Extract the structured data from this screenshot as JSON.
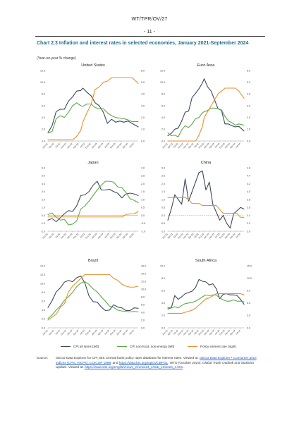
{
  "document": {
    "header": "WT/TPR/OV/27",
    "page_number": "- 11 -",
    "chart_title": "Chart 2.3 Inflation and interest rates in selected economies, January 2021-September 2024",
    "unit_label": "(Year-on-year % change)",
    "source_label": "Source:",
    "source_parts": [
      {
        "t": "OECD Data Explorer for CPI, BIS Central bank policy rates database for interest rates. Viewed at: ",
        "s": ""
      },
      {
        "t": "OECD Data Explorer • Consumer price indices (CPIs, HICPs), COICOP 1999",
        "s": "u"
      },
      {
        "t": "; and ",
        "s": ""
      },
      {
        "t": "https://data.bis.org/topics/CBPOL",
        "s": "u"
      },
      {
        "t": ". WTO (October 2024), ",
        "s": ""
      },
      {
        "t": "Global Trade Outlook and Statistics Update",
        "s": "i"
      },
      {
        "t": ". Viewed at: ",
        "s": ""
      },
      {
        "t": "https://www.wto.org/english/news_e/news24_e/stat_10oct24_e.htm",
        "s": "u"
      },
      {
        "t": ".",
        "s": ""
      }
    ]
  },
  "colors": {
    "cpi_all": "#3b4a5e",
    "cpi_core": "#5fa84a",
    "policy": "#e8912c",
    "axis": "#999999",
    "zero_line": "#9aa4c0"
  },
  "legend": [
    "CPI all items (left)",
    "CPI non-food, non-energy (left)",
    "Policy interest rate (right)"
  ],
  "x_ticks": [
    "Jan-21",
    "Apr-21",
    "Jul-21",
    "Oct-21",
    "Jan-22",
    "Apr-22",
    "Jul-22",
    "Oct-22",
    "Jan-23",
    "Apr-23",
    "Jul-23",
    "Oct-23",
    "Jan-24",
    "Apr-24",
    "Jul-24"
  ],
  "chart_data": [
    {
      "type": "line",
      "title": "United States",
      "left_ticks": [
        "0.0",
        "2.0",
        "4.0",
        "6.0",
        "8.0",
        "10.0",
        "12.0"
      ],
      "ylim_left": [
        0,
        12
      ],
      "right_ticks": [
        "0.0",
        "1.0",
        "2.0",
        "3.0",
        "4.0",
        "5.0",
        "6.0"
      ],
      "ylim_right": [
        0,
        6
      ],
      "x": [
        "2021-01",
        "2021-03",
        "2021-05",
        "2021-07",
        "2021-09",
        "2021-11",
        "2022-01",
        "2022-03",
        "2022-05",
        "2022-06",
        "2022-08",
        "2022-10",
        "2022-12",
        "2023-02",
        "2023-04",
        "2023-06",
        "2023-08",
        "2023-10",
        "2023-12",
        "2024-02",
        "2024-04",
        "2024-06",
        "2024-09"
      ],
      "series": [
        {
          "name": "CPI all items (left)",
          "axis": "left",
          "values": [
            1.4,
            2.6,
            5.0,
            5.4,
            5.4,
            6.8,
            7.5,
            8.5,
            8.6,
            9.0,
            8.3,
            7.7,
            6.5,
            6.0,
            4.9,
            3.0,
            3.7,
            3.2,
            3.4,
            3.2,
            3.4,
            3.0,
            2.4
          ]
        },
        {
          "name": "CPI non-food, non-energy (left)",
          "axis": "left",
          "values": [
            1.4,
            1.6,
            3.8,
            4.3,
            4.0,
            4.9,
            6.0,
            6.5,
            6.0,
            5.9,
            6.3,
            6.3,
            5.7,
            5.5,
            5.5,
            4.8,
            4.3,
            4.0,
            3.9,
            3.8,
            3.6,
            3.3,
            3.3
          ]
        },
        {
          "name": "Policy interest rate (right)",
          "axis": "right",
          "values": [
            0.1,
            0.1,
            0.1,
            0.1,
            0.1,
            0.1,
            0.1,
            0.4,
            0.9,
            1.6,
            2.4,
            3.1,
            4.4,
            4.6,
            5.0,
            5.1,
            5.4,
            5.4,
            5.4,
            5.4,
            5.4,
            5.4,
            4.9
          ]
        }
      ]
    },
    {
      "type": "line",
      "title": "Euro Area",
      "left_ticks": [
        "0.0",
        "2.0",
        "4.0",
        "6.0",
        "8.0",
        "10.0",
        "12.0"
      ],
      "ylim_left": [
        0,
        12
      ],
      "right_ticks": [
        "0.0",
        "1.0",
        "2.0",
        "3.0",
        "4.0",
        "5.0",
        "6.0"
      ],
      "ylim_right": [
        0,
        6
      ],
      "x": [
        "2021-01",
        "2021-03",
        "2021-05",
        "2021-07",
        "2021-09",
        "2021-11",
        "2022-01",
        "2022-03",
        "2022-05",
        "2022-07",
        "2022-09",
        "2022-10",
        "2022-12",
        "2023-02",
        "2023-04",
        "2023-06",
        "2023-08",
        "2023-10",
        "2023-12",
        "2024-02",
        "2024-04",
        "2024-06",
        "2024-09"
      ],
      "series": [
        {
          "name": "CPI all items (left)",
          "axis": "left",
          "values": [
            0.9,
            1.3,
            2.0,
            2.2,
            3.4,
            4.9,
            5.1,
            7.4,
            8.1,
            8.9,
            9.9,
            10.6,
            9.2,
            8.5,
            7.0,
            5.5,
            5.2,
            2.9,
            2.9,
            2.6,
            2.4,
            2.5,
            1.7
          ]
        },
        {
          "name": "CPI non-food, non-energy (left)",
          "axis": "left",
          "values": [
            1.4,
            0.9,
            1.0,
            0.7,
            1.9,
            2.6,
            2.3,
            2.9,
            3.8,
            4.0,
            4.8,
            5.0,
            5.2,
            5.6,
            5.6,
            5.5,
            5.3,
            4.2,
            3.4,
            3.1,
            2.7,
            2.9,
            2.7
          ]
        },
        {
          "name": "Policy interest rate (right)",
          "axis": "right",
          "values": [
            0.0,
            0.0,
            0.0,
            0.0,
            0.0,
            0.0,
            0.0,
            0.0,
            0.0,
            0.5,
            1.25,
            2.0,
            2.5,
            3.0,
            3.5,
            4.0,
            4.25,
            4.5,
            4.5,
            4.5,
            4.5,
            4.25,
            3.65
          ]
        }
      ]
    },
    {
      "type": "line",
      "title": "Japan",
      "left_ticks": [
        "-2.0",
        "-1.0",
        "0.0",
        "1.0",
        "2.0",
        "3.0",
        "4.0",
        "5.0",
        "6.0"
      ],
      "ylim_left": [
        -2,
        6
      ],
      "right_ticks": [
        "-1.0",
        "-0.5",
        "0.0",
        "0.5",
        "1.0",
        "1.5",
        "2.0",
        "2.5",
        "3.0"
      ],
      "ylim_right": [
        -1,
        3
      ],
      "x": [
        "2021-01",
        "2021-03",
        "2021-05",
        "2021-07",
        "2021-09",
        "2021-11",
        "2022-01",
        "2022-03",
        "2022-05",
        "2022-07",
        "2022-09",
        "2022-11",
        "2023-01",
        "2023-03",
        "2023-05",
        "2023-07",
        "2023-09",
        "2023-11",
        "2024-01",
        "2024-03",
        "2024-05",
        "2024-07",
        "2024-09"
      ],
      "series": [
        {
          "name": "CPI all items (left)",
          "axis": "left",
          "values": [
            -0.6,
            -0.4,
            -0.8,
            -0.3,
            0.2,
            0.6,
            0.5,
            1.2,
            2.5,
            2.6,
            3.0,
            3.8,
            4.3,
            3.2,
            3.2,
            3.3,
            3.0,
            2.8,
            2.2,
            2.7,
            2.8,
            2.7,
            2.5
          ]
        },
        {
          "name": "CPI non-food, non-energy (left)",
          "axis": "left",
          "values": [
            0.1,
            0.3,
            -0.2,
            -0.6,
            -0.5,
            -1.2,
            -1.1,
            -0.7,
            0.8,
            1.2,
            1.8,
            2.5,
            3.2,
            3.8,
            4.3,
            4.3,
            4.2,
            3.6,
            3.5,
            2.9,
            2.1,
            1.9,
            1.6
          ]
        },
        {
          "name": "Policy interest rate (right)",
          "axis": "right",
          "values": [
            -0.1,
            -0.1,
            -0.1,
            -0.1,
            -0.1,
            -0.1,
            -0.1,
            -0.1,
            -0.1,
            -0.1,
            -0.1,
            -0.1,
            -0.1,
            -0.1,
            -0.1,
            -0.1,
            -0.1,
            -0.1,
            -0.1,
            0.05,
            0.1,
            0.1,
            0.25
          ]
        }
      ]
    },
    {
      "type": "line",
      "title": "China",
      "left_ticks": [
        "-1.0",
        "-0.5",
        "0.0",
        "0.5",
        "1.0",
        "1.5",
        "2.0",
        "2.5",
        "3.0"
      ],
      "ylim_left": [
        -1,
        3
      ],
      "right_ticks": [
        "3.0",
        "3.2",
        "3.4",
        "3.6",
        "3.8",
        "4.0",
        "4.2",
        "4.4",
        "4.6"
      ],
      "ylim_right": [
        3.0,
        4.6
      ],
      "x": [
        "2021-01",
        "2021-03",
        "2021-05",
        "2021-07",
        "2021-09",
        "2021-11",
        "2022-01",
        "2022-03",
        "2022-05",
        "2022-07",
        "2022-09",
        "2022-11",
        "2023-01",
        "2023-03",
        "2023-05",
        "2023-07",
        "2023-09",
        "2023-11",
        "2024-01",
        "2024-03",
        "2024-05",
        "2024-07",
        "2024-09"
      ],
      "series": [
        {
          "name": "CPI all items (left)",
          "axis": "left",
          "values": [
            -0.3,
            0.4,
            1.3,
            1.0,
            0.7,
            2.3,
            0.9,
            1.5,
            2.1,
            2.7,
            2.8,
            1.6,
            2.1,
            0.7,
            0.2,
            -0.3,
            0.0,
            -0.5,
            -0.8,
            0.1,
            0.3,
            0.5,
            0.4
          ]
        },
        {
          "name": "Policy interest rate (right)",
          "axis": "right",
          "values": [
            3.85,
            3.85,
            3.85,
            3.85,
            3.85,
            3.85,
            3.8,
            3.7,
            3.7,
            3.7,
            3.65,
            3.65,
            3.65,
            3.65,
            3.65,
            3.55,
            3.45,
            3.45,
            3.45,
            3.45,
            3.45,
            3.35,
            3.35
          ]
        }
      ]
    },
    {
      "type": "line",
      "title": "Brazil",
      "left_ticks": [
        "0.0",
        "2.0",
        "4.0",
        "6.0",
        "8.0",
        "10.0",
        "12.0",
        "14.0"
      ],
      "ylim_left": [
        0,
        14
      ],
      "right_ticks": [
        "0.0",
        "2.0",
        "4.0",
        "6.0",
        "8.0",
        "10.0",
        "12.0",
        "14.0",
        "16.0"
      ],
      "ylim_right": [
        0,
        16
      ],
      "x": [
        "2021-01",
        "2021-03",
        "2021-05",
        "2021-07",
        "2021-09",
        "2021-11",
        "2022-01",
        "2022-03",
        "2022-05",
        "2022-07",
        "2022-09",
        "2022-11",
        "2023-01",
        "2023-03",
        "2023-05",
        "2023-07",
        "2023-09",
        "2023-11",
        "2024-01",
        "2024-03",
        "2024-05",
        "2024-07",
        "2024-09"
      ],
      "series": [
        {
          "name": "CPI all items (left)",
          "axis": "left",
          "values": [
            4.6,
            6.1,
            8.1,
            9.0,
            10.3,
            10.7,
            10.4,
            11.3,
            11.7,
            10.1,
            7.2,
            5.9,
            5.8,
            4.7,
            3.9,
            4.0,
            5.2,
            4.7,
            4.5,
            3.9,
            3.9,
            4.5,
            4.4
          ]
        },
        {
          "name": "CPI non-food, non-energy (left)",
          "axis": "left",
          "values": [
            2.1,
            2.9,
            4.0,
            4.9,
            6.2,
            7.0,
            8.0,
            9.3,
            10.1,
            10.4,
            9.8,
            8.8,
            8.1,
            7.0,
            6.0,
            4.9,
            4.6,
            4.0,
            3.8,
            3.7,
            3.6,
            3.7,
            3.6
          ]
        },
        {
          "name": "Policy interest rate (right)",
          "axis": "right",
          "values": [
            2.0,
            2.75,
            3.5,
            5.25,
            6.25,
            9.25,
            10.75,
            11.75,
            12.75,
            13.75,
            13.75,
            13.75,
            13.75,
            13.75,
            13.75,
            13.75,
            12.75,
            12.25,
            11.25,
            10.75,
            10.5,
            10.5,
            10.75
          ]
        }
      ]
    },
    {
      "type": "line",
      "title": "South Africa",
      "left_ticks": [
        "0.0",
        "2.0",
        "4.0",
        "6.0",
        "8.0",
        "10.0"
      ],
      "ylim_left": [
        0,
        10
      ],
      "right_ticks": [
        "0.0",
        "3.0",
        "6.0",
        "9.0",
        "12.0",
        "15.0"
      ],
      "ylim_right": [
        0,
        15
      ],
      "x": [
        "2021-01",
        "2021-03",
        "2021-05",
        "2021-07",
        "2021-09",
        "2021-11",
        "2022-01",
        "2022-03",
        "2022-05",
        "2022-07",
        "2022-09",
        "2022-11",
        "2023-01",
        "2023-03",
        "2023-05",
        "2023-07",
        "2023-09",
        "2023-11",
        "2024-01",
        "2024-03",
        "2024-05",
        "2024-07",
        "2024-09"
      ],
      "series": [
        {
          "name": "CPI all items (left)",
          "axis": "left",
          "values": [
            3.2,
            3.2,
            5.2,
            4.6,
            5.0,
            5.5,
            5.7,
            5.9,
            6.5,
            7.8,
            7.5,
            7.4,
            6.9,
            7.1,
            6.3,
            4.7,
            5.4,
            5.5,
            5.3,
            5.3,
            5.2,
            4.6,
            3.8
          ]
        },
        {
          "name": "CPI non-food, non-energy (left)",
          "axis": "left",
          "values": [
            3.0,
            3.2,
            3.4,
            3.2,
            3.6,
            3.9,
            4.0,
            4.1,
            4.3,
            4.6,
            5.0,
            5.3,
            5.2,
            5.3,
            5.3,
            4.8,
            4.5,
            4.3,
            4.3,
            4.5,
            4.3,
            4.3,
            4.2
          ]
        },
        {
          "name": "Policy interest rate (right)",
          "axis": "right",
          "values": [
            3.5,
            3.5,
            3.5,
            3.5,
            3.5,
            3.75,
            4.0,
            4.25,
            4.75,
            5.5,
            6.25,
            7.0,
            7.25,
            7.75,
            8.25,
            8.25,
            8.25,
            8.25,
            8.25,
            8.25,
            8.25,
            8.25,
            8.0
          ]
        }
      ]
    }
  ]
}
